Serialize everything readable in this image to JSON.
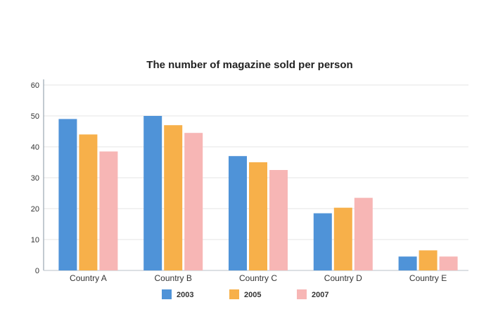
{
  "chart_data": {
    "type": "bar",
    "title": "The number of magazine sold per person",
    "xlabel": "",
    "ylabel": "",
    "categories": [
      "Country A",
      "Country B",
      "Country C",
      "Country D",
      "Country E"
    ],
    "series": [
      {
        "name": "2003",
        "color": "#4f93d8",
        "values": [
          49,
          50,
          37,
          18.5,
          4.5
        ]
      },
      {
        "name": "2005",
        "color": "#f7b04a",
        "values": [
          44,
          47,
          35,
          20.3,
          6.5
        ]
      },
      {
        "name": "2007",
        "color": "#f7b6b5",
        "values": [
          38.5,
          44.5,
          32.5,
          23.5,
          4.5
        ]
      }
    ],
    "ylim": [
      0,
      60
    ],
    "yticks": [
      0,
      10,
      20,
      30,
      40,
      50,
      60
    ],
    "grid": true,
    "legend_position": "bottom"
  }
}
